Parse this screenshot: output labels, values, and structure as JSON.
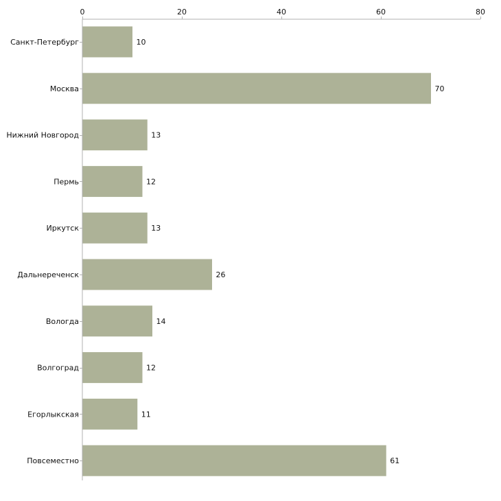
{
  "chart_data": {
    "type": "bar",
    "orientation": "horizontal",
    "title": "",
    "xlabel": "",
    "ylabel": "",
    "categories": [
      "Санкт-Петербург",
      "Москва",
      "Нижний Новгород",
      "Пермь",
      "Иркутск",
      "Дальнереченск",
      "Вологда",
      "Волгоград",
      "Егорлыкская",
      "Повсеместно"
    ],
    "values": [
      10,
      70,
      13,
      12,
      13,
      26,
      14,
      12,
      11,
      61
    ],
    "xlim": [
      0,
      80
    ],
    "xticks": [
      0,
      20,
      40,
      60,
      80
    ],
    "axis_position": "top",
    "grid": false,
    "bar_color": "#adb297",
    "axis_color": "#b0b0b0",
    "data_labels": true
  }
}
